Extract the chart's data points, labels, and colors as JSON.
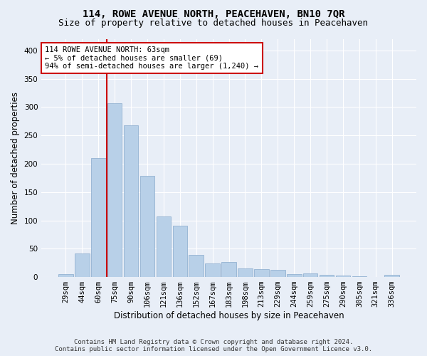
{
  "title": "114, ROWE AVENUE NORTH, PEACEHAVEN, BN10 7QR",
  "subtitle": "Size of property relative to detached houses in Peacehaven",
  "xlabel": "Distribution of detached houses by size in Peacehaven",
  "ylabel": "Number of detached properties",
  "categories": [
    "29sqm",
    "44sqm",
    "60sqm",
    "75sqm",
    "90sqm",
    "106sqm",
    "121sqm",
    "136sqm",
    "152sqm",
    "167sqm",
    "183sqm",
    "198sqm",
    "213sqm",
    "229sqm",
    "244sqm",
    "259sqm",
    "275sqm",
    "290sqm",
    "305sqm",
    "321sqm",
    "336sqm"
  ],
  "values": [
    5,
    42,
    210,
    307,
    268,
    178,
    107,
    90,
    39,
    24,
    27,
    15,
    14,
    13,
    5,
    7,
    4,
    3,
    1,
    0,
    4
  ],
  "bar_color": "#b8d0e8",
  "bar_edge_color": "#88aacc",
  "vline_x": 2.5,
  "vline_color": "#cc0000",
  "annotation_text": "114 ROWE AVENUE NORTH: 63sqm\n← 5% of detached houses are smaller (69)\n94% of semi-detached houses are larger (1,240) →",
  "annotation_box_color": "#ffffff",
  "annotation_box_edgecolor": "#cc0000",
  "ylim": [
    0,
    420
  ],
  "yticks": [
    0,
    50,
    100,
    150,
    200,
    250,
    300,
    350,
    400
  ],
  "footer_line1": "Contains HM Land Registry data © Crown copyright and database right 2024.",
  "footer_line2": "Contains public sector information licensed under the Open Government Licence v3.0.",
  "background_color": "#e8eef7",
  "plot_bg_color": "#e8eef7",
  "title_fontsize": 10,
  "subtitle_fontsize": 9,
  "axis_label_fontsize": 8.5,
  "tick_fontsize": 7.5,
  "footer_fontsize": 6.5
}
